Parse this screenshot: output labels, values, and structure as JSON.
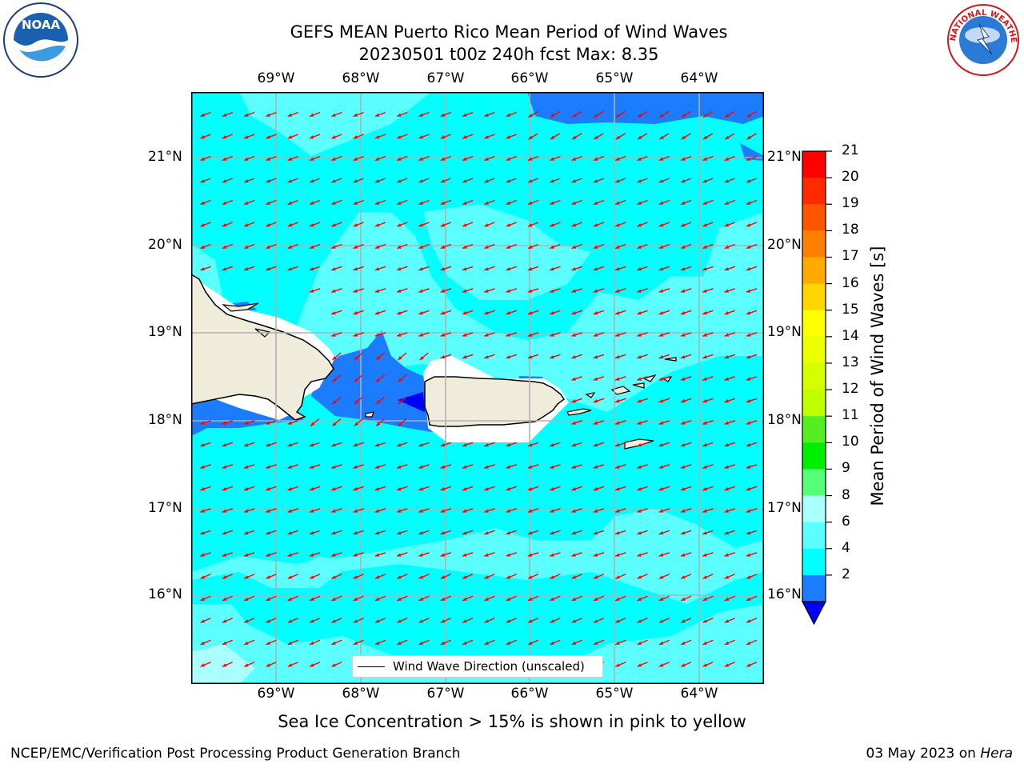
{
  "title": {
    "line1": "GEFS MEAN Puerto Rico Mean Period of Wind Waves",
    "line2": "20230501 t00z 240h fcst   Max: 8.35"
  },
  "map": {
    "lon_labels": [
      "69°W",
      "68°W",
      "67°W",
      "66°W",
      "65°W",
      "64°W"
    ],
    "lat_labels": [
      "21°N",
      "20°N",
      "19°N",
      "18°N",
      "17°N",
      "16°N"
    ],
    "extent": {
      "lon": [
        -70.0,
        -63.25
      ],
      "lat": [
        15.0,
        21.75
      ]
    },
    "colors": {
      "land": "#efecdc",
      "ocean_6_8": "#5cffff",
      "ocean_4_6": "#00ffff",
      "ocean_2_4": "#1c7cff",
      "ocean_lt2": "#0000ff",
      "arrow": "#ff0000",
      "grid": "#b0b0b0"
    }
  },
  "legend": {
    "label": "Wind Wave Direction (unscaled)"
  },
  "colorbar": {
    "title": "Mean Period of Wind Waves [s]",
    "ticks": [
      "21",
      "20",
      "19",
      "18",
      "17",
      "16",
      "15",
      "14",
      "13",
      "12",
      "11",
      "10",
      "9",
      "8",
      "6",
      "4",
      "2"
    ],
    "colors": [
      "#ff0000",
      "#ff2a00",
      "#ff5500",
      "#ff8000",
      "#ffaa00",
      "#ffd500",
      "#ffff00",
      "#eaff00",
      "#d4ff00",
      "#bfff00",
      "#55ee22",
      "#00ee00",
      "#55ff77",
      "#aaffff",
      "#5cffff",
      "#00ffff",
      "#1c7cff"
    ],
    "extend_color": "#0000ff"
  },
  "subtitle": "Sea Ice Concentration > 15% is shown in pink to yellow",
  "footer": {
    "left": "NCEP/EMC/Verification Post Processing Product Generation Branch",
    "date": "03 May 2023 on ",
    "machine": "Hera"
  },
  "logos": {
    "noaa": "NOAA",
    "nws": "NATIONAL WEATHER SERVICE"
  }
}
